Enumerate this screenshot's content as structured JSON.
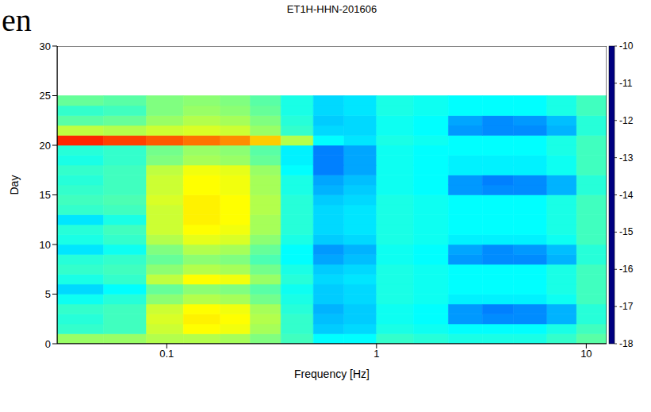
{
  "chart_data": {
    "type": "heatmap",
    "title": "ET1H-HHN-201606",
    "x_label": "Frequency [Hz]",
    "y_label": "Day",
    "annotations": [
      "en"
    ],
    "log": "x",
    "xlim": [
      0.03,
      12.5
    ],
    "xticks": [
      0.1,
      1,
      10
    ],
    "ylim": [
      0,
      30
    ],
    "yticks": [
      0,
      5,
      10,
      15,
      20,
      25,
      30
    ],
    "x_edges": [
      0.03,
      0.05,
      0.08,
      0.12,
      0.18,
      0.25,
      0.35,
      0.5,
      0.7,
      1.0,
      1.5,
      2.2,
      3.2,
      4.5,
      6.5,
      9,
      12.5
    ],
    "y_edges": [
      0,
      1,
      2,
      3,
      4,
      5,
      6,
      7,
      8,
      9,
      10,
      11,
      12,
      13,
      14,
      15,
      16,
      17,
      18,
      19,
      20,
      21,
      22,
      23,
      24,
      25
    ],
    "cells": [
      [
        -13.8,
        -13.8,
        -13.6,
        -13.6,
        -13.7,
        -14.0,
        -14.5,
        -15.0,
        -15.0,
        -14.6,
        -14.7,
        -14.8,
        -14.8,
        -14.8,
        -14.6,
        -14.3
      ],
      [
        -14.6,
        -14.5,
        -13.4,
        -13.0,
        -13.1,
        -13.7,
        -14.6,
        -15.4,
        -15.3,
        -14.8,
        -14.9,
        -15.0,
        -15.0,
        -15.0,
        -14.8,
        -14.5
      ],
      [
        -14.7,
        -14.5,
        -13.3,
        -12.9,
        -13.0,
        -13.6,
        -14.6,
        -15.5,
        -15.4,
        -14.9,
        -15.0,
        -15.8,
        -15.9,
        -15.9,
        -15.6,
        -14.7
      ],
      [
        -14.6,
        -14.5,
        -13.4,
        -13.0,
        -13.1,
        -13.7,
        -14.7,
        -15.6,
        -15.4,
        -14.9,
        -15.0,
        -15.8,
        -16.0,
        -15.9,
        -15.6,
        -14.7
      ],
      [
        -14.9,
        -14.7,
        -13.9,
        -13.6,
        -13.7,
        -14.1,
        -14.8,
        -15.4,
        -15.3,
        -14.8,
        -14.9,
        -15.1,
        -15.1,
        -15.1,
        -14.9,
        -14.5
      ],
      [
        -15.3,
        -15.0,
        -14.2,
        -13.9,
        -14.0,
        -14.3,
        -14.9,
        -15.4,
        -15.3,
        -14.8,
        -14.9,
        -15.0,
        -15.0,
        -15.0,
        -14.8,
        -14.5
      ],
      [
        -14.8,
        -14.6,
        -13.5,
        -13.0,
        -13.1,
        -13.8,
        -14.7,
        -15.3,
        -15.2,
        -14.8,
        -14.9,
        -15.0,
        -15.0,
        -15.0,
        -14.8,
        -14.5
      ],
      [
        -14.6,
        -14.5,
        -13.9,
        -13.6,
        -13.7,
        -14.1,
        -14.8,
        -15.4,
        -15.3,
        -14.8,
        -14.9,
        -15.0,
        -15.0,
        -15.0,
        -14.8,
        -14.5
      ],
      [
        -14.7,
        -14.6,
        -14.2,
        -13.9,
        -14.0,
        -14.4,
        -15.0,
        -15.7,
        -15.5,
        -14.9,
        -15.0,
        -15.8,
        -15.9,
        -15.9,
        -15.6,
        -14.7
      ],
      [
        -15.2,
        -14.9,
        -14.0,
        -13.6,
        -13.7,
        -14.2,
        -15.0,
        -15.8,
        -15.6,
        -14.9,
        -15.0,
        -15.7,
        -15.9,
        -15.8,
        -15.5,
        -14.7
      ],
      [
        -14.8,
        -14.6,
        -13.6,
        -13.2,
        -13.3,
        -13.9,
        -14.8,
        -15.4,
        -15.3,
        -14.8,
        -14.9,
        -15.1,
        -15.1,
        -15.1,
        -14.9,
        -14.5
      ],
      [
        -14.7,
        -14.5,
        -13.4,
        -13.0,
        -13.1,
        -13.7,
        -14.7,
        -15.3,
        -15.2,
        -14.8,
        -14.9,
        -15.0,
        -15.0,
        -15.0,
        -14.8,
        -14.5
      ],
      [
        -15.2,
        -14.8,
        -13.4,
        -12.9,
        -13.0,
        -13.7,
        -14.7,
        -15.3,
        -15.2,
        -14.8,
        -14.9,
        -15.0,
        -15.0,
        -15.0,
        -14.8,
        -14.5
      ],
      [
        -14.6,
        -14.5,
        -13.4,
        -12.9,
        -13.0,
        -13.6,
        -14.7,
        -15.3,
        -15.2,
        -14.8,
        -14.9,
        -15.0,
        -15.0,
        -15.0,
        -14.8,
        -14.5
      ],
      [
        -14.5,
        -14.4,
        -13.3,
        -12.9,
        -13.0,
        -13.6,
        -14.7,
        -15.4,
        -15.3,
        -14.8,
        -14.9,
        -15.0,
        -15.0,
        -15.0,
        -14.8,
        -14.5
      ],
      [
        -14.6,
        -14.5,
        -13.4,
        -13.0,
        -13.1,
        -13.7,
        -14.8,
        -15.6,
        -15.4,
        -14.9,
        -15.0,
        -15.8,
        -15.9,
        -15.9,
        -15.6,
        -14.7
      ],
      [
        -14.7,
        -14.5,
        -13.4,
        -13.0,
        -13.1,
        -13.7,
        -14.8,
        -15.7,
        -15.5,
        -14.9,
        -15.0,
        -15.8,
        -16.0,
        -15.9,
        -15.6,
        -14.7
      ],
      [
        -14.6,
        -14.5,
        -13.5,
        -13.1,
        -13.2,
        -13.8,
        -15.0,
        -16.0,
        -15.7,
        -14.9,
        -15.0,
        -15.1,
        -15.1,
        -15.1,
        -14.9,
        -14.5
      ],
      [
        -14.8,
        -14.6,
        -14.0,
        -13.7,
        -13.8,
        -14.2,
        -15.1,
        -16.0,
        -15.7,
        -14.9,
        -15.0,
        -15.1,
        -15.1,
        -15.1,
        -14.9,
        -14.5
      ],
      [
        -14.7,
        -14.6,
        -14.1,
        -13.8,
        -13.9,
        -14.3,
        -15.1,
        -16.0,
        -15.7,
        -14.9,
        -15.0,
        -15.0,
        -15.0,
        -15.0,
        -14.8,
        -14.5
      ],
      [
        -11.3,
        -11.5,
        -11.7,
        -11.9,
        -12.1,
        -12.6,
        -13.6,
        -15.0,
        -15.2,
        -14.8,
        -14.9,
        -15.0,
        -15.0,
        -15.0,
        -14.8,
        -14.5
      ],
      [
        -13.5,
        -13.6,
        -13.4,
        -13.3,
        -13.4,
        -13.8,
        -14.6,
        -15.3,
        -15.3,
        -14.9,
        -15.0,
        -15.8,
        -15.9,
        -15.9,
        -15.6,
        -14.7
      ],
      [
        -14.3,
        -14.2,
        -13.8,
        -13.6,
        -13.7,
        -14.0,
        -14.7,
        -15.4,
        -15.3,
        -14.9,
        -15.0,
        -15.7,
        -15.9,
        -15.8,
        -15.5,
        -14.7
      ],
      [
        -14.6,
        -14.5,
        -14.0,
        -13.8,
        -13.9,
        -14.2,
        -14.8,
        -15.3,
        -15.2,
        -14.8,
        -14.9,
        -15.0,
        -15.0,
        -15.0,
        -14.8,
        -14.5
      ],
      [
        -14.2,
        -14.3,
        -14.0,
        -13.9,
        -14.0,
        -14.3,
        -14.8,
        -15.3,
        -15.2,
        -14.8,
        -14.9,
        -15.0,
        -15.0,
        -15.0,
        -14.8,
        -14.5
      ]
    ],
    "colorbar": {
      "range": [
        -18,
        -10
      ],
      "ticks": [
        -18,
        -17,
        -16,
        -15,
        -14,
        -13,
        -12,
        -11,
        -10
      ]
    }
  }
}
